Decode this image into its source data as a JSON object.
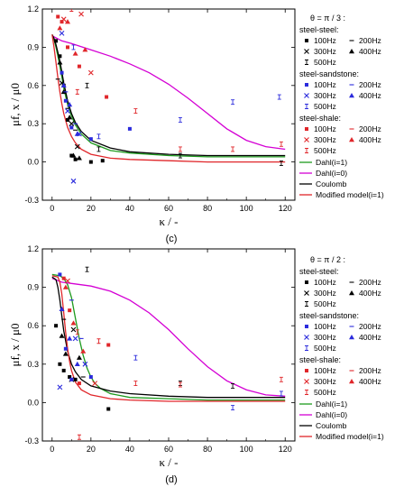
{
  "chart_data": [
    {
      "type": "line",
      "panel_label": "(c)",
      "theta_label": "θ = π / 3 :",
      "xlabel": "κ / -",
      "ylabel": "μf, x / μ0",
      "xlim": [
        -5,
        125
      ],
      "ylim": [
        -0.3,
        1.2
      ],
      "xticks": [
        0,
        20,
        40,
        60,
        80,
        100,
        120
      ],
      "yticks": [
        -0.3,
        0.0,
        0.3,
        0.6,
        0.9,
        1.2
      ],
      "legend_groups": [
        {
          "title": "steel-steel:",
          "freqs": [
            "100Hz",
            "200Hz",
            "300Hz",
            "400Hz",
            "500Hz"
          ],
          "color": "#000000"
        },
        {
          "title": "steel-sandstone:",
          "freqs": [
            "100Hz",
            "200Hz",
            "300Hz",
            "400Hz",
            "500Hz"
          ],
          "color": "#2b2bdc"
        },
        {
          "title": "steel-shale:",
          "freqs": [
            "100Hz",
            "200Hz",
            "300Hz",
            "400Hz",
            "500Hz"
          ],
          "color": "#e0262a"
        }
      ],
      "curves": [
        {
          "name": "Dahl(i=1)",
          "color": "#1e9a1e",
          "x": [
            0,
            1,
            2,
            3,
            4,
            5,
            6,
            8,
            10,
            12,
            15,
            20,
            30,
            40,
            60,
            80,
            100,
            120
          ],
          "y": [
            1.0,
            0.96,
            0.9,
            0.83,
            0.75,
            0.67,
            0.58,
            0.45,
            0.36,
            0.29,
            0.22,
            0.15,
            0.09,
            0.07,
            0.05,
            0.04,
            0.04,
            0.04
          ]
        },
        {
          "name": "Dahl(i=0)",
          "color": "#d400d4",
          "x": [
            0,
            5,
            10,
            20,
            30,
            40,
            50,
            60,
            70,
            80,
            90,
            100,
            110,
            120
          ],
          "y": [
            0.99,
            0.95,
            0.93,
            0.88,
            0.83,
            0.77,
            0.7,
            0.61,
            0.5,
            0.38,
            0.26,
            0.17,
            0.12,
            0.1
          ]
        },
        {
          "name": "Coulomb",
          "color": "#000000",
          "x": [
            0,
            1,
            2,
            3,
            4,
            5,
            6,
            8,
            10,
            12,
            15,
            20,
            30,
            40,
            60,
            80,
            100,
            120
          ],
          "y": [
            1.0,
            0.97,
            0.92,
            0.86,
            0.79,
            0.71,
            0.62,
            0.48,
            0.38,
            0.31,
            0.24,
            0.17,
            0.11,
            0.08,
            0.06,
            0.05,
            0.05,
            0.05
          ]
        },
        {
          "name": "Modified model(i=1)",
          "color": "#e0262a",
          "x": [
            0,
            1,
            2,
            3,
            4,
            5,
            6,
            8,
            10,
            12,
            15,
            20,
            30,
            40,
            60,
            80,
            100,
            120
          ],
          "y": [
            1.0,
            0.9,
            0.78,
            0.66,
            0.55,
            0.46,
            0.38,
            0.27,
            0.2,
            0.15,
            0.1,
            0.06,
            0.03,
            0.02,
            0.01,
            0.0,
            0.0,
            0.0
          ]
        }
      ],
      "points": [
        {
          "x": 2,
          "y": 0.95,
          "m": "sq",
          "c": "#000000"
        },
        {
          "x": 4,
          "y": 0.83,
          "m": "sq",
          "c": "#000000"
        },
        {
          "x": 6,
          "y": 0.6,
          "m": "sq",
          "c": "#000000"
        },
        {
          "x": 8,
          "y": 0.33,
          "m": "sq",
          "c": "#000000"
        },
        {
          "x": 10,
          "y": 0.05,
          "m": "sq",
          "c": "#000000"
        },
        {
          "x": 12,
          "y": 0.02,
          "m": "sq",
          "c": "#000000"
        },
        {
          "x": 20,
          "y": 0.0,
          "m": "sq",
          "c": "#000000"
        },
        {
          "x": 26,
          "y": 0.01,
          "m": "sq",
          "c": "#000000"
        },
        {
          "x": 4,
          "y": 0.78,
          "m": "tri",
          "c": "#000000"
        },
        {
          "x": 6,
          "y": 0.55,
          "m": "tri",
          "c": "#000000"
        },
        {
          "x": 9,
          "y": 0.35,
          "m": "tri",
          "c": "#000000"
        },
        {
          "x": 11,
          "y": 0.05,
          "m": "tri",
          "c": "#000000"
        },
        {
          "x": 14,
          "y": 0.03,
          "m": "tri",
          "c": "#000000"
        },
        {
          "x": 5,
          "y": 0.62,
          "m": "x",
          "c": "#000000"
        },
        {
          "x": 10,
          "y": 0.3,
          "m": "x",
          "c": "#000000"
        },
        {
          "x": 13,
          "y": 0.12,
          "m": "x",
          "c": "#000000"
        },
        {
          "x": 3,
          "y": 0.65,
          "m": "dash",
          "c": "#000000"
        },
        {
          "x": 8,
          "y": 0.42,
          "m": "dash",
          "c": "#000000"
        },
        {
          "x": 12,
          "y": 0.25,
          "m": "dash",
          "c": "#000000"
        },
        {
          "x": 18,
          "y": 0.6,
          "m": "err",
          "c": "#000000"
        },
        {
          "x": 24,
          "y": 0.1,
          "m": "err",
          "c": "#000000"
        },
        {
          "x": 66,
          "y": 0.05,
          "m": "err",
          "c": "#000000"
        },
        {
          "x": 118,
          "y": -0.01,
          "m": "err",
          "c": "#000000"
        },
        {
          "x": 5,
          "y": 0.7,
          "m": "sq",
          "c": "#2b2bdc"
        },
        {
          "x": 7,
          "y": 0.48,
          "m": "sq",
          "c": "#2b2bdc"
        },
        {
          "x": 10,
          "y": 0.27,
          "m": "sq",
          "c": "#2b2bdc"
        },
        {
          "x": 20,
          "y": 0.18,
          "m": "sq",
          "c": "#2b2bdc"
        },
        {
          "x": 40,
          "y": 0.26,
          "m": "sq",
          "c": "#2b2bdc"
        },
        {
          "x": 6,
          "y": 0.6,
          "m": "tri",
          "c": "#2b2bdc"
        },
        {
          "x": 9,
          "y": 0.45,
          "m": "tri",
          "c": "#2b2bdc"
        },
        {
          "x": 13,
          "y": 0.22,
          "m": "tri",
          "c": "#2b2bdc"
        },
        {
          "x": 5,
          "y": 1.01,
          "m": "x",
          "c": "#2b2bdc"
        },
        {
          "x": 8,
          "y": 0.4,
          "m": "x",
          "c": "#2b2bdc"
        },
        {
          "x": 11,
          "y": -0.15,
          "m": "x",
          "c": "#2b2bdc"
        },
        {
          "x": 14,
          "y": 0.22,
          "m": "x",
          "c": "#2b2bdc"
        },
        {
          "x": 7,
          "y": 0.55,
          "m": "dash",
          "c": "#2b2bdc"
        },
        {
          "x": 12,
          "y": 0.3,
          "m": "dash",
          "c": "#2b2bdc"
        },
        {
          "x": 11,
          "y": 0.9,
          "m": "err",
          "c": "#2b2bdc"
        },
        {
          "x": 24,
          "y": 0.2,
          "m": "err",
          "c": "#2b2bdc"
        },
        {
          "x": 66,
          "y": 0.33,
          "m": "err",
          "c": "#2b2bdc"
        },
        {
          "x": 93,
          "y": 0.47,
          "m": "err",
          "c": "#2b2bdc"
        },
        {
          "x": 117,
          "y": 0.51,
          "m": "err",
          "c": "#2b2bdc"
        },
        {
          "x": 3,
          "y": 1.14,
          "m": "sq",
          "c": "#e0262a"
        },
        {
          "x": 5,
          "y": 1.1,
          "m": "sq",
          "c": "#e0262a"
        },
        {
          "x": 8,
          "y": 0.9,
          "m": "sq",
          "c": "#e0262a"
        },
        {
          "x": 14,
          "y": 0.75,
          "m": "sq",
          "c": "#e0262a"
        },
        {
          "x": 28,
          "y": 0.51,
          "m": "sq",
          "c": "#e0262a"
        },
        {
          "x": 4,
          "y": 1.05,
          "m": "tri",
          "c": "#e0262a"
        },
        {
          "x": 8,
          "y": 1.1,
          "m": "tri",
          "c": "#e0262a"
        },
        {
          "x": 12,
          "y": 0.85,
          "m": "tri",
          "c": "#e0262a"
        },
        {
          "x": 17,
          "y": 0.88,
          "m": "tri",
          "c": "#e0262a"
        },
        {
          "x": 6,
          "y": 1.12,
          "m": "x",
          "c": "#e0262a"
        },
        {
          "x": 15,
          "y": 1.16,
          "m": "x",
          "c": "#e0262a"
        },
        {
          "x": 20,
          "y": 0.7,
          "m": "x",
          "c": "#e0262a"
        },
        {
          "x": 10,
          "y": 1.2,
          "m": "err",
          "c": "#e0262a"
        },
        {
          "x": 13,
          "y": 0.55,
          "m": "err",
          "c": "#e0262a"
        },
        {
          "x": 43,
          "y": 0.4,
          "m": "err",
          "c": "#e0262a"
        },
        {
          "x": 66,
          "y": 0.1,
          "m": "err",
          "c": "#e0262a"
        },
        {
          "x": 93,
          "y": 0.1,
          "m": "err",
          "c": "#e0262a"
        },
        {
          "x": 118,
          "y": 0.14,
          "m": "err",
          "c": "#e0262a"
        }
      ]
    },
    {
      "type": "line",
      "panel_label": "(d)",
      "theta_label": "θ = π / 2 :",
      "xlabel": "κ / -",
      "ylabel": "μf, x / μ0",
      "xlim": [
        -5,
        125
      ],
      "ylim": [
        -0.3,
        1.2
      ],
      "xticks": [
        0,
        20,
        40,
        60,
        80,
        100,
        120
      ],
      "yticks": [
        -0.3,
        0.0,
        0.3,
        0.6,
        0.9,
        1.2
      ],
      "legend_groups": [
        {
          "title": "steel-steel:",
          "freqs": [
            "100Hz",
            "200Hz",
            "300Hz",
            "400Hz",
            "500Hz"
          ],
          "color": "#000000"
        },
        {
          "title": "steel-sandstone:",
          "freqs": [
            "100Hz",
            "200Hz",
            "300Hz",
            "400Hz",
            "500Hz"
          ],
          "color": "#2b2bdc"
        },
        {
          "title": "steel-shale:",
          "freqs": [
            "100Hz",
            "200Hz",
            "300Hz",
            "400Hz",
            "500Hz"
          ],
          "color": "#e0262a"
        }
      ],
      "curves": [
        {
          "name": "Dahl(i=1)",
          "color": "#1e9a1e",
          "x": [
            0,
            4,
            6,
            8,
            10,
            12,
            14,
            16,
            18,
            20,
            22,
            25,
            30,
            40,
            60,
            80,
            100,
            120
          ],
          "y": [
            1.0,
            0.99,
            0.97,
            0.92,
            0.82,
            0.66,
            0.5,
            0.37,
            0.27,
            0.2,
            0.15,
            0.11,
            0.07,
            0.04,
            0.03,
            0.02,
            0.02,
            0.02
          ]
        },
        {
          "name": "Dahl(i=0)",
          "color": "#d400d4",
          "x": [
            0,
            5,
            10,
            20,
            30,
            40,
            50,
            60,
            70,
            80,
            90,
            100,
            110,
            120
          ],
          "y": [
            0.97,
            0.94,
            0.93,
            0.91,
            0.87,
            0.8,
            0.7,
            0.57,
            0.42,
            0.28,
            0.17,
            0.1,
            0.06,
            0.05
          ]
        },
        {
          "name": "Coulomb",
          "color": "#000000",
          "x": [
            0,
            2,
            3,
            4,
            5,
            6,
            8,
            10,
            12,
            15,
            20,
            30,
            40,
            60,
            80,
            100,
            120
          ],
          "y": [
            0.98,
            0.96,
            0.9,
            0.8,
            0.68,
            0.56,
            0.4,
            0.3,
            0.24,
            0.18,
            0.13,
            0.09,
            0.07,
            0.05,
            0.04,
            0.04,
            0.04
          ]
        },
        {
          "name": "Modified model(i=1)",
          "color": "#e0262a",
          "x": [
            0,
            3,
            4,
            5,
            6,
            7,
            8,
            9,
            10,
            12,
            15,
            20,
            30,
            40,
            60,
            80,
            100,
            120
          ],
          "y": [
            0.99,
            0.98,
            0.94,
            0.85,
            0.7,
            0.55,
            0.42,
            0.32,
            0.25,
            0.16,
            0.1,
            0.06,
            0.03,
            0.02,
            0.01,
            0.01,
            0.01,
            0.01
          ]
        }
      ],
      "points": [
        {
          "x": 2,
          "y": 0.6,
          "m": "sq",
          "c": "#000000"
        },
        {
          "x": 4,
          "y": 0.3,
          "m": "sq",
          "c": "#000000"
        },
        {
          "x": 6,
          "y": 0.25,
          "m": "sq",
          "c": "#000000"
        },
        {
          "x": 9,
          "y": 0.2,
          "m": "sq",
          "c": "#000000"
        },
        {
          "x": 12,
          "y": 0.18,
          "m": "sq",
          "c": "#000000"
        },
        {
          "x": 29,
          "y": -0.05,
          "m": "sq",
          "c": "#000000"
        },
        {
          "x": 5,
          "y": 0.52,
          "m": "tri",
          "c": "#000000"
        },
        {
          "x": 7,
          "y": 0.38,
          "m": "tri",
          "c": "#000000"
        },
        {
          "x": 14,
          "y": 0.35,
          "m": "tri",
          "c": "#000000"
        },
        {
          "x": 10,
          "y": 0.18,
          "m": "x",
          "c": "#000000"
        },
        {
          "x": 11,
          "y": 0.57,
          "m": "x",
          "c": "#000000"
        },
        {
          "x": 6,
          "y": 0.65,
          "m": "dash",
          "c": "#000000"
        },
        {
          "x": 16,
          "y": 0.2,
          "m": "dash",
          "c": "#000000"
        },
        {
          "x": 18,
          "y": 1.04,
          "m": "err",
          "c": "#000000"
        },
        {
          "x": 66,
          "y": 0.15,
          "m": "err",
          "c": "#000000"
        },
        {
          "x": 93,
          "y": 0.13,
          "m": "err",
          "c": "#000000"
        },
        {
          "x": 4,
          "y": 1.0,
          "m": "sq",
          "c": "#2b2bdc"
        },
        {
          "x": 7,
          "y": 0.42,
          "m": "sq",
          "c": "#2b2bdc"
        },
        {
          "x": 10,
          "y": 0.18,
          "m": "sq",
          "c": "#2b2bdc"
        },
        {
          "x": 20,
          "y": 0.2,
          "m": "sq",
          "c": "#2b2bdc"
        },
        {
          "x": 5,
          "y": 0.73,
          "m": "tri",
          "c": "#2b2bdc"
        },
        {
          "x": 9,
          "y": 0.5,
          "m": "tri",
          "c": "#2b2bdc"
        },
        {
          "x": 13,
          "y": 0.3,
          "m": "tri",
          "c": "#2b2bdc"
        },
        {
          "x": 4,
          "y": 0.12,
          "m": "x",
          "c": "#2b2bdc"
        },
        {
          "x": 12,
          "y": 0.5,
          "m": "x",
          "c": "#2b2bdc"
        },
        {
          "x": 17,
          "y": 0.3,
          "m": "x",
          "c": "#2b2bdc"
        },
        {
          "x": 10,
          "y": 0.8,
          "m": "dash",
          "c": "#2b2bdc"
        },
        {
          "x": 15,
          "y": 0.5,
          "m": "dash",
          "c": "#2b2bdc"
        },
        {
          "x": 43,
          "y": 0.35,
          "m": "err",
          "c": "#2b2bdc"
        },
        {
          "x": 93,
          "y": -0.04,
          "m": "err",
          "c": "#2b2bdc"
        },
        {
          "x": 118,
          "y": 0.07,
          "m": "err",
          "c": "#2b2bdc"
        },
        {
          "x": 6,
          "y": 0.97,
          "m": "sq",
          "c": "#e0262a"
        },
        {
          "x": 9,
          "y": 0.72,
          "m": "sq",
          "c": "#e0262a"
        },
        {
          "x": 14,
          "y": 0.15,
          "m": "sq",
          "c": "#e0262a"
        },
        {
          "x": 29,
          "y": 0.45,
          "m": "sq",
          "c": "#e0262a"
        },
        {
          "x": 7,
          "y": 0.9,
          "m": "tri",
          "c": "#e0262a"
        },
        {
          "x": 11,
          "y": 0.62,
          "m": "tri",
          "c": "#e0262a"
        },
        {
          "x": 16,
          "y": 0.4,
          "m": "tri",
          "c": "#e0262a"
        },
        {
          "x": 8,
          "y": 0.95,
          "m": "x",
          "c": "#e0262a"
        },
        {
          "x": 22,
          "y": 0.15,
          "m": "x",
          "c": "#e0262a"
        },
        {
          "x": 13,
          "y": 0.55,
          "m": "err",
          "c": "#e0262a"
        },
        {
          "x": 14,
          "y": -0.27,
          "m": "err",
          "c": "#e0262a"
        },
        {
          "x": 24,
          "y": 0.48,
          "m": "err",
          "c": "#e0262a"
        },
        {
          "x": 43,
          "y": 0.15,
          "m": "err",
          "c": "#e0262a"
        },
        {
          "x": 66,
          "y": 0.14,
          "m": "err",
          "c": "#e0262a"
        },
        {
          "x": 118,
          "y": 0.18,
          "m": "err",
          "c": "#e0262a"
        }
      ]
    }
  ]
}
